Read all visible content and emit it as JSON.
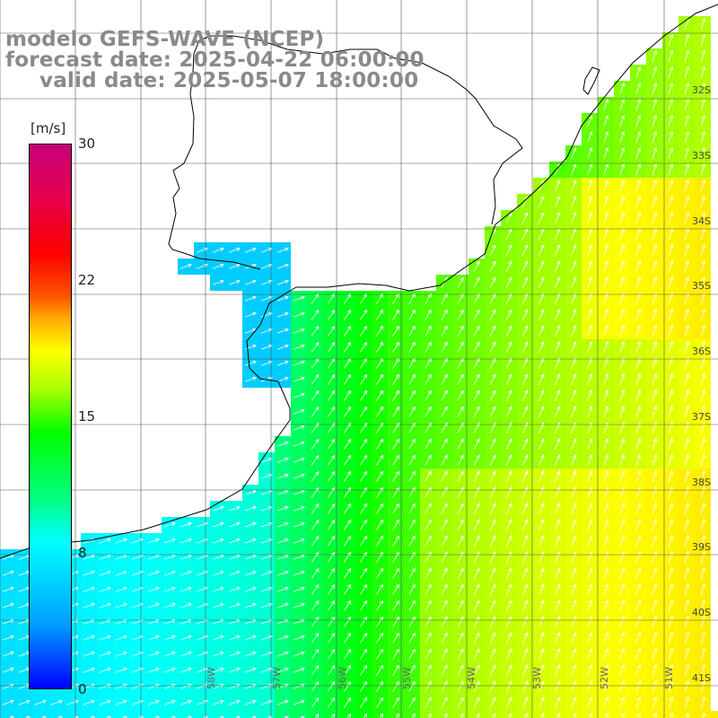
{
  "header": {
    "title": "modelo GEFS-WAVE (NCEP)",
    "forecast_date": "forecast date: 2025-04-22 06:00:00",
    "valid_date": "valid date: 2025-05-07 18:00:00"
  },
  "colorbar": {
    "unit": "[m/s]",
    "ticks": [
      "30",
      "22",
      "15",
      "8",
      "0"
    ],
    "tick_values": [
      30,
      22,
      15,
      8,
      0
    ],
    "colors": [
      "#0000ff",
      "#00a0ff",
      "#00ffff",
      "#00ff7f",
      "#00ff00",
      "#aaff00",
      "#ffff00",
      "#ffaa00",
      "#ff5500",
      "#ff0000",
      "#e6004d",
      "#c8007a"
    ]
  },
  "grid": {
    "lat_labels": [
      "32S",
      "33S",
      "34S",
      "35S",
      "36S",
      "37S",
      "38S",
      "39S",
      "40S",
      "41S"
    ],
    "lon_labels": [
      "58W",
      "57W",
      "56W",
      "55W",
      "54W",
      "53W",
      "52W",
      "51W"
    ]
  },
  "palette": {
    "land": "#ffffff",
    "coast": "#000000",
    "grid_line": "#444444",
    "arrow": "#ffffff",
    "text": "#8a8a8a"
  }
}
